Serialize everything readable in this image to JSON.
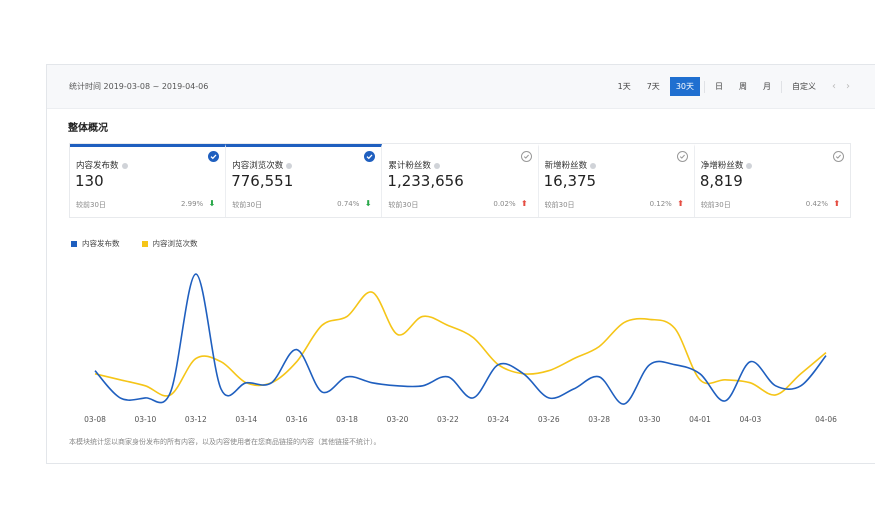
{
  "header": {
    "period_text": "统计时间 2019-03-08 ~ 2019-04-06",
    "ranges": [
      {
        "label": "1天",
        "active": false
      },
      {
        "label": "7天",
        "active": false
      },
      {
        "label": "30天",
        "active": true
      },
      {
        "label": "日",
        "active": false
      },
      {
        "label": "周",
        "active": false
      },
      {
        "label": "月",
        "active": false
      },
      {
        "label": "自定义",
        "active": false
      }
    ],
    "prev_arrow": "‹",
    "next_arrow": "›"
  },
  "overview": {
    "title": "整体概况",
    "cards": [
      {
        "label": "内容发布数",
        "value": "130",
        "compare": "较前30日",
        "pct": "2.99%",
        "trend": "down",
        "trend_icon": "⬇",
        "selected": true
      },
      {
        "label": "内容浏览次数",
        "value": "776,551",
        "compare": "较前30日",
        "pct": "0.74%",
        "trend": "down",
        "trend_icon": "⬇",
        "selected": true
      },
      {
        "label": "累计粉丝数",
        "value": "1,233,656",
        "compare": "较前30日",
        "pct": "0.02%",
        "trend": "up",
        "trend_icon": "⬆",
        "selected": false
      },
      {
        "label": "新增粉丝数",
        "value": "16,375",
        "compare": "较前30日",
        "pct": "0.12%",
        "trend": "up",
        "trend_icon": "⬆",
        "selected": false
      },
      {
        "label": "净增粉丝数",
        "value": "8,819",
        "compare": "较前30日",
        "pct": "0.42%",
        "trend": "up",
        "trend_icon": "⬆",
        "selected": false
      }
    ]
  },
  "chart_data": {
    "type": "line",
    "x": [
      "03-08",
      "03-09",
      "03-10",
      "03-11",
      "03-12",
      "03-13",
      "03-14",
      "03-15",
      "03-16",
      "03-17",
      "03-18",
      "03-19",
      "03-20",
      "03-21",
      "03-22",
      "03-23",
      "03-24",
      "03-25",
      "03-26",
      "03-27",
      "03-28",
      "03-29",
      "03-30",
      "03-31",
      "04-01",
      "04-02",
      "04-03",
      "04-04",
      "04-05",
      "04-06"
    ],
    "tick_labels": [
      "03-08",
      "03-10",
      "03-12",
      "03-14",
      "03-16",
      "03-18",
      "03-20",
      "03-22",
      "03-24",
      "03-26",
      "03-28",
      "03-30",
      "04-01",
      "04-03",
      "04-06"
    ],
    "tick_positions": [
      "03-08",
      "03-10",
      "03-12",
      "03-14",
      "03-16",
      "03-18",
      "03-20",
      "03-22",
      "03-24",
      "03-26",
      "03-28",
      "03-30",
      "04-01",
      "04-03",
      "04-06"
    ],
    "series": [
      {
        "name": "内容发布数",
        "color": "#1f5fbf",
        "values": [
          1.0,
          0.1,
          0.1,
          0.3,
          4.2,
          0.4,
          0.6,
          0.6,
          1.7,
          0.3,
          0.8,
          0.6,
          0.5,
          0.5,
          0.8,
          0.1,
          1.2,
          0.9,
          0.1,
          0.4,
          0.8,
          -0.1,
          1.2,
          1.2,
          0.9,
          0.0,
          1.3,
          0.5,
          0.5,
          1.5
        ]
      },
      {
        "name": "内容浏览次数",
        "color": "#f5c518",
        "values": [
          0.9,
          0.7,
          0.5,
          0.2,
          1.4,
          1.3,
          0.6,
          0.6,
          1.3,
          2.5,
          2.8,
          3.6,
          2.2,
          2.8,
          2.5,
          2.1,
          1.2,
          0.9,
          1.0,
          1.4,
          1.8,
          2.6,
          2.7,
          2.4,
          0.7,
          0.7,
          0.6,
          0.2,
          0.9,
          1.6
        ]
      }
    ],
    "ylim": [
      -0.3,
      4.5
    ],
    "grid": false,
    "legend_position": "top-left"
  },
  "footnote": "本模块统计您以商家身份发布的所有内容，以及内容使用者在您商品链接的内容（其他链接不统计）。"
}
